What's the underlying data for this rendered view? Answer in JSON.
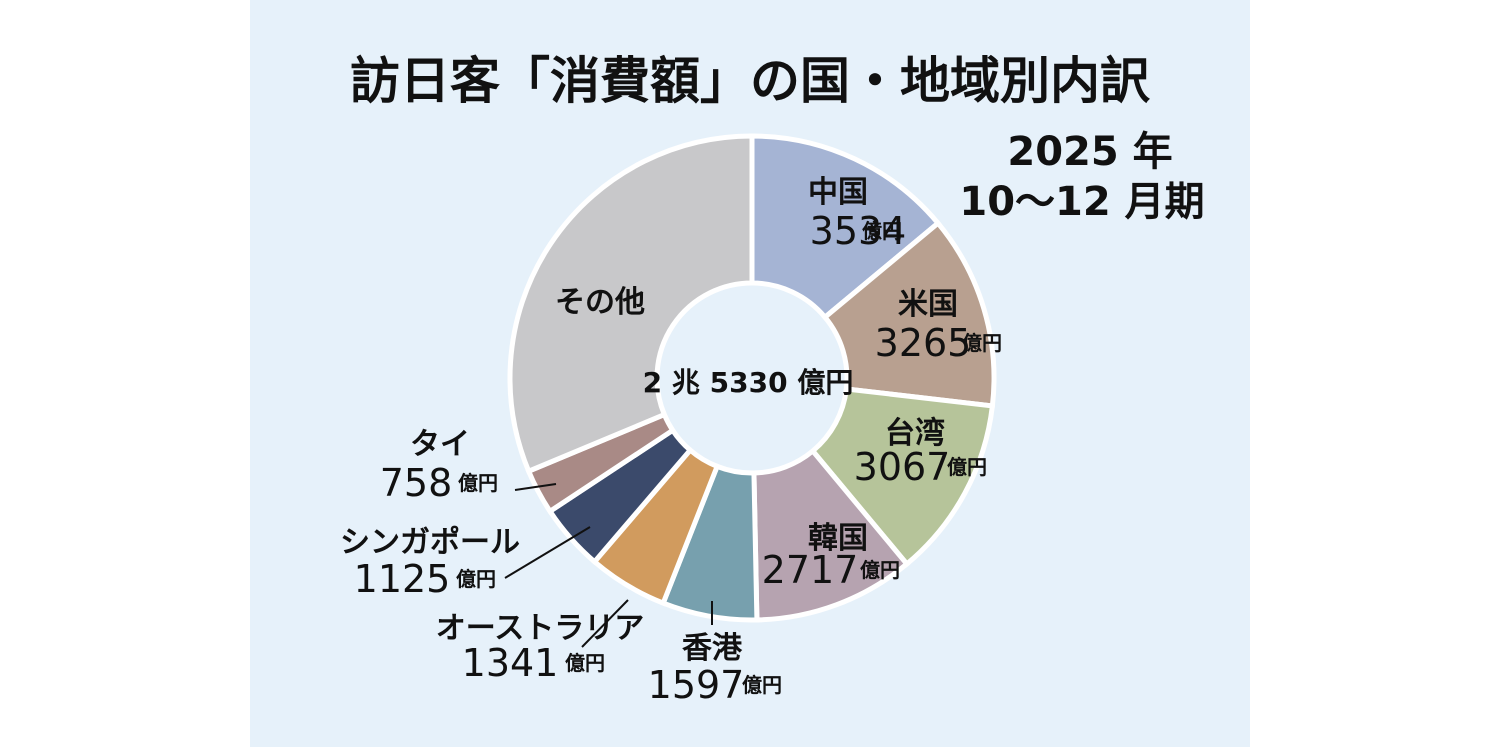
{
  "chart_data": {
    "type": "pie",
    "title": "訪日客「消費額」の国・地域別内訳",
    "period_line1": "2025 年",
    "period_line2": "10〜12 月期",
    "center_label": "2 兆 5330 億円",
    "unit": "億円",
    "slices": [
      {
        "name": "中国",
        "value": 3534,
        "color": "#a5b4d4"
      },
      {
        "name": "米国",
        "value": 3265,
        "color": "#b8a090"
      },
      {
        "name": "台湾",
        "value": 3067,
        "color": "#b6c49a"
      },
      {
        "name": "韓国",
        "value": 2717,
        "color": "#b6a3b0"
      },
      {
        "name": "香港",
        "value": 1597,
        "color": "#77a0ae"
      },
      {
        "name": "オーストラリア",
        "value": 1341,
        "color": "#d19b5e"
      },
      {
        "name": "シンガポール",
        "value": 1125,
        "color": "#3b4a6b"
      },
      {
        "name": "タイ",
        "value": 758,
        "color": "#a98a86"
      },
      {
        "name": "その他",
        "value": 7926,
        "color": "#c8c8ca"
      }
    ]
  }
}
